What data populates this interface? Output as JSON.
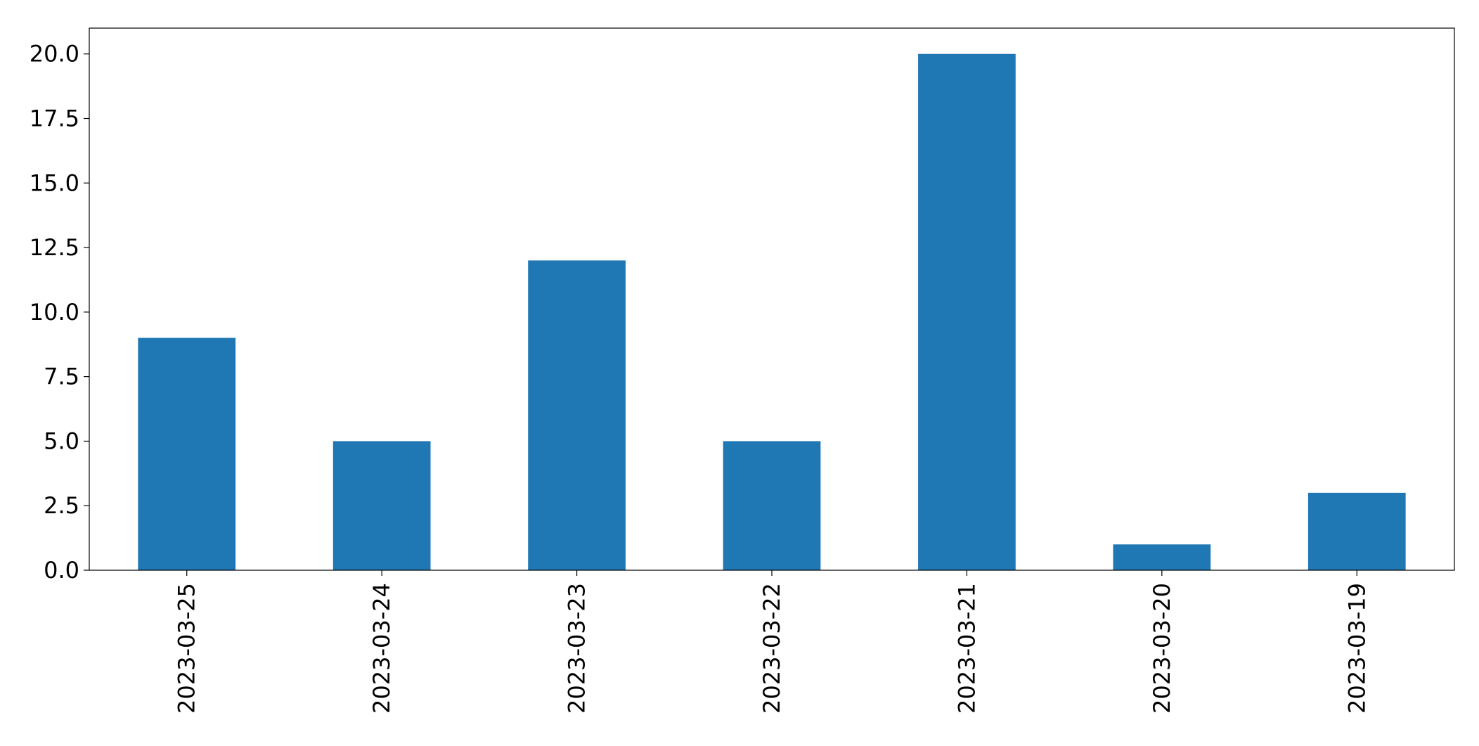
{
  "chart_data": {
    "type": "bar",
    "categories": [
      "2023-03-25",
      "2023-03-24",
      "2023-03-23",
      "2023-03-22",
      "2023-03-21",
      "2023-03-20",
      "2023-03-19"
    ],
    "values": [
      9,
      5,
      12,
      5,
      20,
      1,
      3
    ],
    "title": "",
    "xlabel": "",
    "ylabel": "",
    "ylim": [
      0,
      21
    ],
    "yticks": [
      "0.0",
      "2.5",
      "5.0",
      "7.5",
      "10.0",
      "12.5",
      "15.0",
      "17.5",
      "20.0"
    ],
    "grid": false,
    "bar_color": "#1f77b4"
  }
}
